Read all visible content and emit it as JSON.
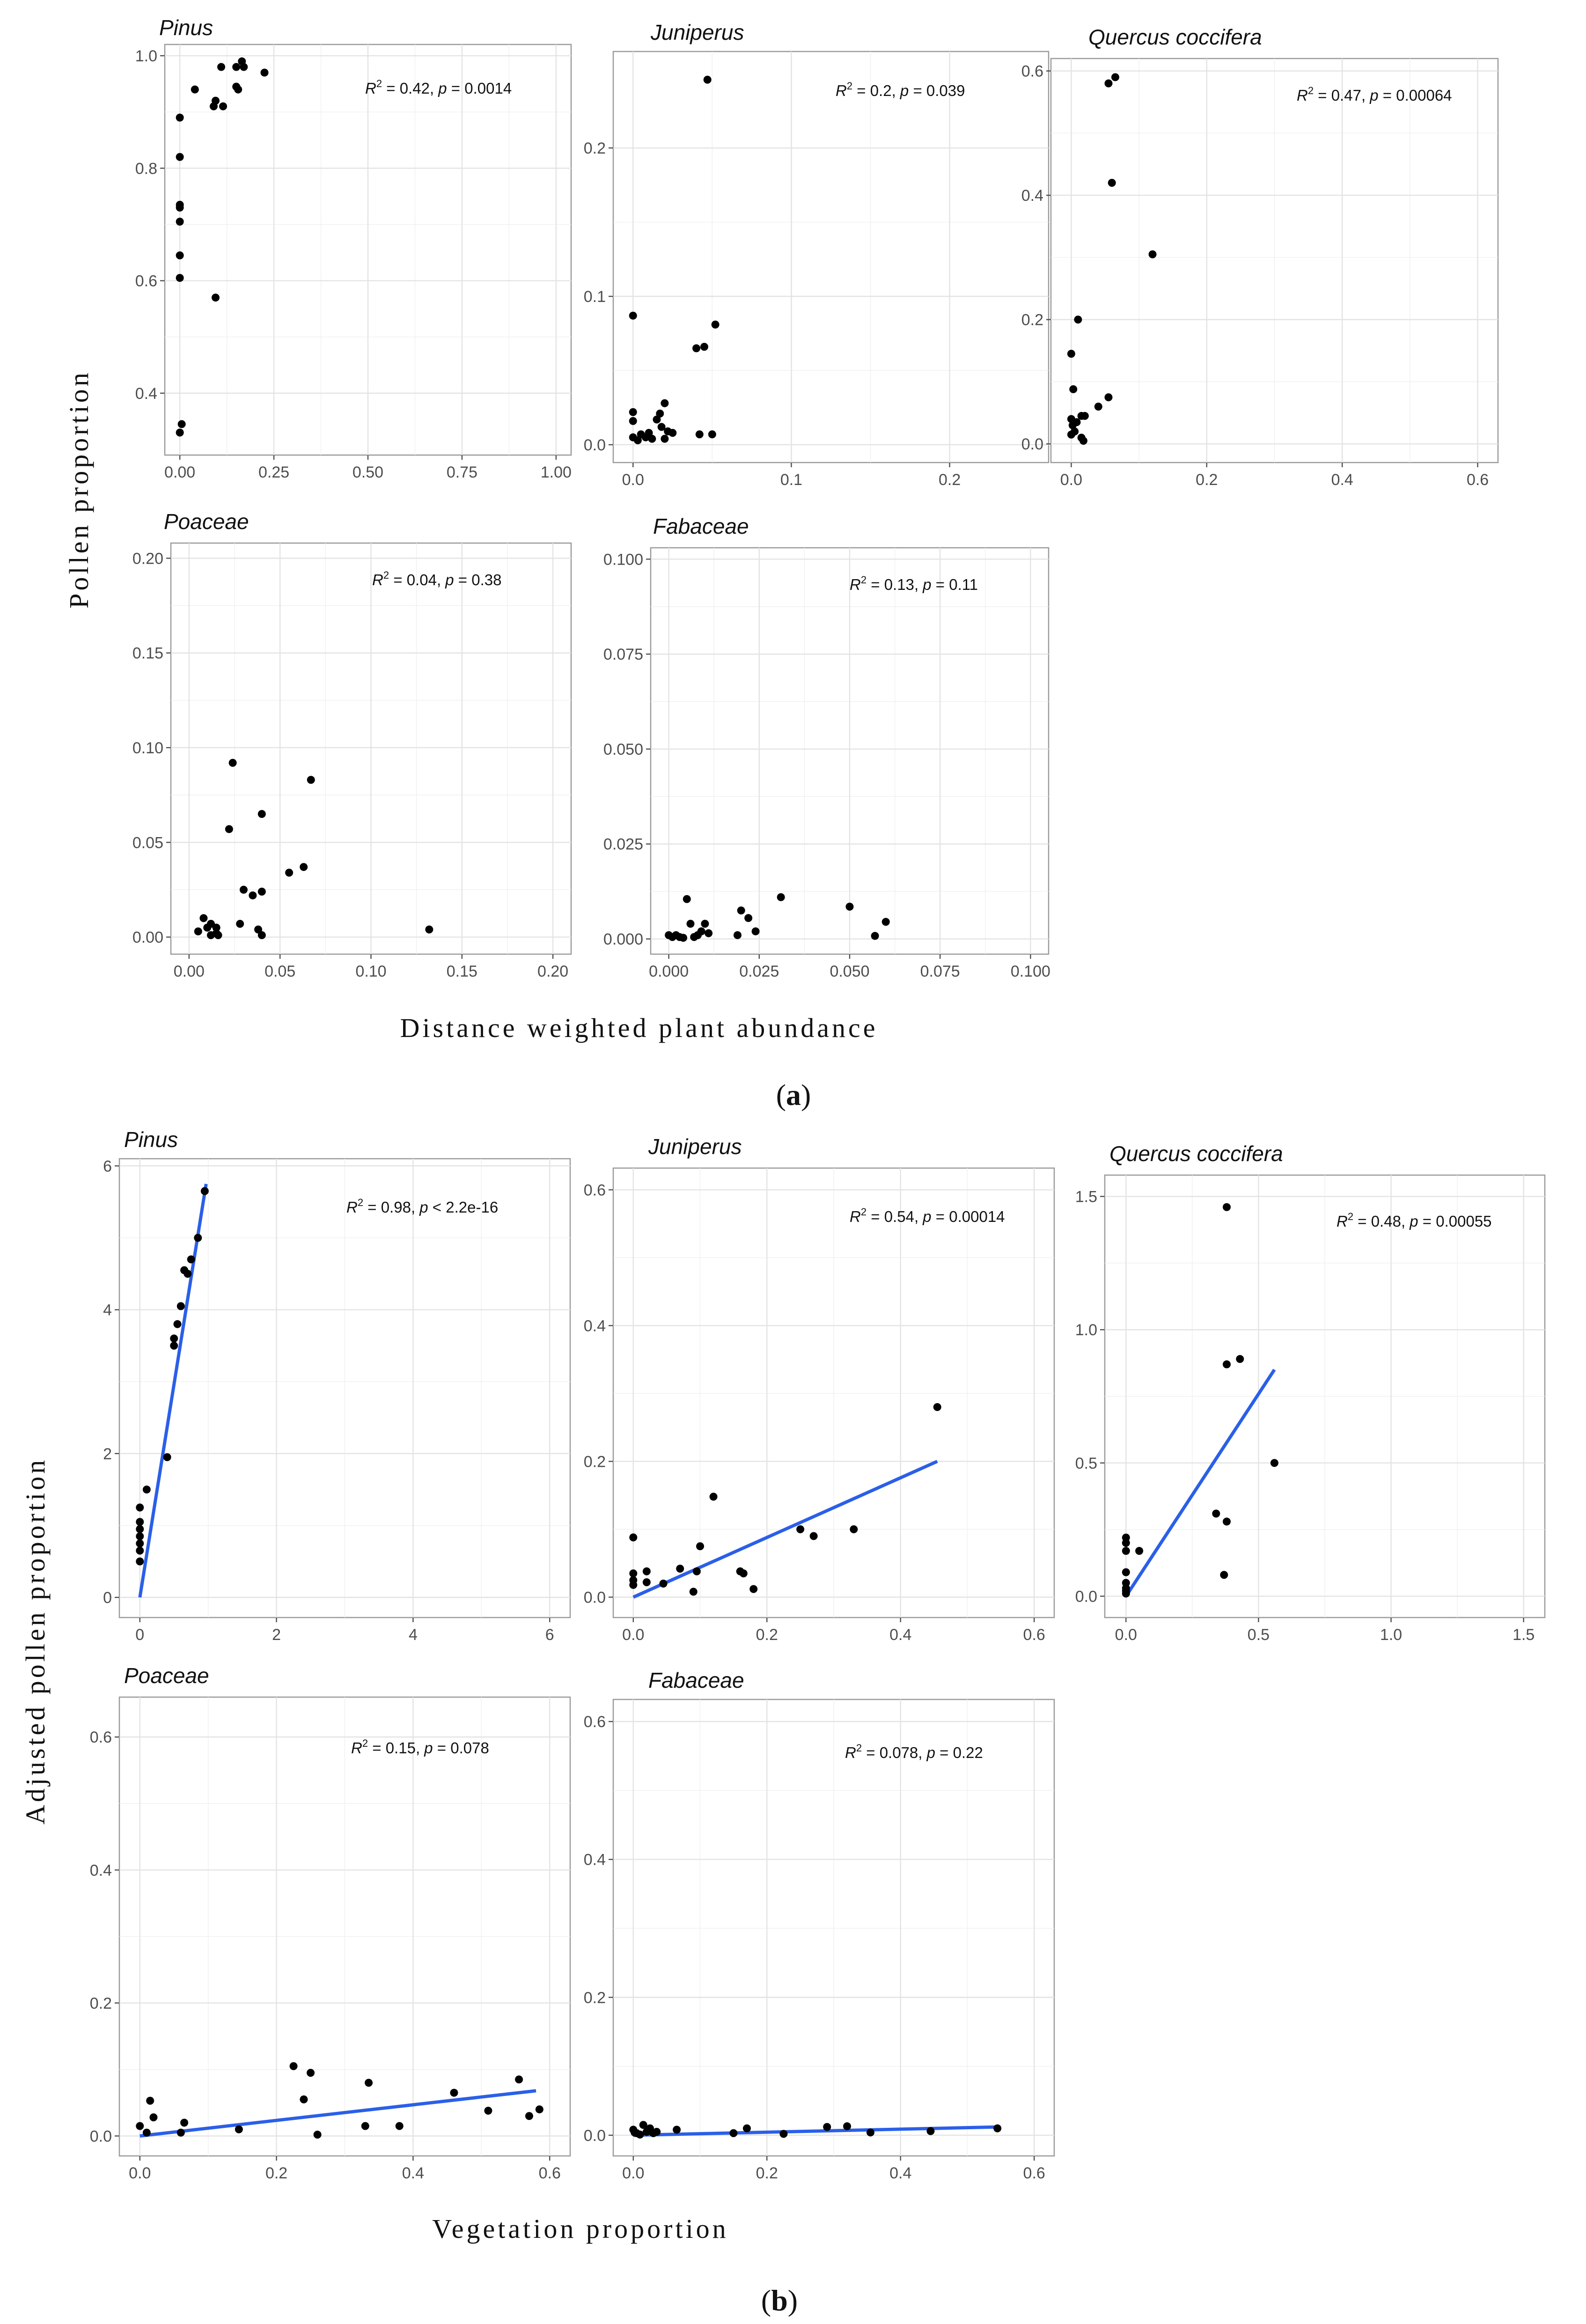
{
  "figure": {
    "part_a": {
      "caption_label": "a",
      "y_axis_label": "Pollen proportion",
      "x_axis_label": "Distance weighted plant abundance"
    },
    "part_b": {
      "caption_label": "b",
      "y_axis_label": "Adjusted pollen proportion",
      "x_axis_label": "Vegetation proportion"
    }
  },
  "chart_data": [
    {
      "id": "a-pinus",
      "part": "a",
      "type": "scatter",
      "title": "Pinus",
      "xlim": [
        -0.04,
        1.04
      ],
      "ylim": [
        0.29,
        1.02
      ],
      "xticks": [
        0,
        0.25,
        0.5,
        0.75,
        1.0
      ],
      "xtick_labels": [
        "0.00",
        "0.25",
        "0.50",
        "0.75",
        "1.00"
      ],
      "yticks": [
        0.4,
        0.6,
        0.8,
        1.0
      ],
      "ytick_labels": [
        "0.4",
        "0.6",
        "0.8",
        "1.0"
      ],
      "stat": {
        "r2": "0.42",
        "p_op": "=",
        "p": "0.0014"
      },
      "points": [
        [
          0.0,
          0.89
        ],
        [
          0.0,
          0.82
        ],
        [
          0.0,
          0.735
        ],
        [
          0.0,
          0.73
        ],
        [
          0.0,
          0.705
        ],
        [
          0.0,
          0.645
        ],
        [
          0.0,
          0.605
        ],
        [
          0.005,
          0.345
        ],
        [
          0.0,
          0.33
        ],
        [
          0.04,
          0.94
        ],
        [
          0.09,
          0.91
        ],
        [
          0.095,
          0.92
        ],
        [
          0.11,
          0.98
        ],
        [
          0.115,
          0.91
        ],
        [
          0.15,
          0.98
        ],
        [
          0.15,
          0.945
        ],
        [
          0.155,
          0.94
        ],
        [
          0.165,
          0.99
        ],
        [
          0.17,
          0.98
        ],
        [
          0.225,
          0.97
        ],
        [
          0.095,
          0.57
        ]
      ]
    },
    {
      "id": "a-juniperus",
      "part": "a",
      "type": "scatter",
      "title": "Juniperus",
      "xlim": [
        -0.0125,
        0.2625
      ],
      "ylim": [
        -0.012,
        0.265
      ],
      "xticks": [
        0,
        0.1,
        0.2
      ],
      "xtick_labels": [
        "0.0",
        "0.1",
        "0.2"
      ],
      "yticks": [
        0,
        0.1,
        0.2
      ],
      "ytick_labels": [
        "0.0",
        "0.1",
        "0.2"
      ],
      "stat": {
        "r2": "0.2",
        "p_op": "=",
        "p": "0.039"
      },
      "points": [
        [
          0.0,
          0.087
        ],
        [
          0.0,
          0.022
        ],
        [
          0.0,
          0.016
        ],
        [
          0.0,
          0.005
        ],
        [
          0.003,
          0.003
        ],
        [
          0.005,
          0.007
        ],
        [
          0.008,
          0.005
        ],
        [
          0.01,
          0.008
        ],
        [
          0.012,
          0.004
        ],
        [
          0.015,
          0.017
        ],
        [
          0.017,
          0.021
        ],
        [
          0.018,
          0.012
        ],
        [
          0.02,
          0.028
        ],
        [
          0.02,
          0.004
        ],
        [
          0.022,
          0.009
        ],
        [
          0.025,
          0.008
        ],
        [
          0.04,
          0.065
        ],
        [
          0.045,
          0.066
        ],
        [
          0.042,
          0.007
        ],
        [
          0.05,
          0.007
        ],
        [
          0.052,
          0.081
        ],
        [
          0.047,
          0.246
        ]
      ]
    },
    {
      "id": "a-quercus",
      "part": "a",
      "type": "scatter",
      "title": "Quercus coccifera",
      "xlim": [
        -0.03,
        0.63
      ],
      "ylim": [
        -0.03,
        0.62
      ],
      "xticks": [
        0,
        0.2,
        0.4,
        0.6
      ],
      "xtick_labels": [
        "0.0",
        "0.2",
        "0.4",
        "0.6"
      ],
      "yticks": [
        0,
        0.2,
        0.4,
        0.6
      ],
      "ytick_labels": [
        "0.0",
        "0.2",
        "0.4",
        "0.6"
      ],
      "stat": {
        "r2": "0.47",
        "p_op": "=",
        "p": "0.00064"
      },
      "points": [
        [
          0.0,
          0.145
        ],
        [
          0.003,
          0.088
        ],
        [
          0.0,
          0.04
        ],
        [
          0.002,
          0.03
        ],
        [
          0.0,
          0.015
        ],
        [
          0.005,
          0.02
        ],
        [
          0.008,
          0.035
        ],
        [
          0.01,
          0.2
        ],
        [
          0.015,
          0.045
        ],
        [
          0.015,
          0.01
        ],
        [
          0.018,
          0.005
        ],
        [
          0.02,
          0.045
        ],
        [
          0.04,
          0.06
        ],
        [
          0.055,
          0.075
        ],
        [
          0.055,
          0.58
        ],
        [
          0.065,
          0.59
        ],
        [
          0.06,
          0.42
        ],
        [
          0.12,
          0.305
        ]
      ]
    },
    {
      "id": "a-poaceae",
      "part": "a",
      "type": "scatter",
      "title": "Poaceae",
      "xlim": [
        -0.01,
        0.21
      ],
      "ylim": [
        -0.009,
        0.208
      ],
      "xticks": [
        0,
        0.05,
        0.1,
        0.15,
        0.2
      ],
      "xtick_labels": [
        "0.00",
        "0.05",
        "0.10",
        "0.15",
        "0.20"
      ],
      "yticks": [
        0,
        0.05,
        0.1,
        0.15,
        0.2
      ],
      "ytick_labels": [
        "0.00",
        "0.05",
        "0.10",
        "0.15",
        "0.20"
      ],
      "stat": {
        "r2": "0.04",
        "p_op": "=",
        "p": "0.38"
      },
      "points": [
        [
          0.005,
          0.003
        ],
        [
          0.008,
          0.01
        ],
        [
          0.01,
          0.005
        ],
        [
          0.012,
          0.001
        ],
        [
          0.012,
          0.007
        ],
        [
          0.015,
          0.002
        ],
        [
          0.015,
          0.005
        ],
        [
          0.016,
          0.001
        ],
        [
          0.022,
          0.057
        ],
        [
          0.024,
          0.092
        ],
        [
          0.028,
          0.007
        ],
        [
          0.03,
          0.025
        ],
        [
          0.035,
          0.022
        ],
        [
          0.038,
          0.004
        ],
        [
          0.04,
          0.024
        ],
        [
          0.04,
          0.065
        ],
        [
          0.04,
          0.001
        ],
        [
          0.055,
          0.034
        ],
        [
          0.063,
          0.037
        ],
        [
          0.067,
          0.083
        ],
        [
          0.132,
          0.004
        ]
      ]
    },
    {
      "id": "a-fabaceae",
      "part": "a",
      "type": "scatter",
      "title": "Fabaceae",
      "xlim": [
        -0.005,
        0.105
      ],
      "ylim": [
        -0.004,
        0.103
      ],
      "xticks": [
        0,
        0.025,
        0.05,
        0.075,
        0.1
      ],
      "xtick_labels": [
        "0.000",
        "0.025",
        "0.050",
        "0.075",
        "0.100"
      ],
      "yticks": [
        0,
        0.025,
        0.05,
        0.075,
        0.1
      ],
      "ytick_labels": [
        "0.000",
        "0.025",
        "0.050",
        "0.075",
        "0.100"
      ],
      "stat": {
        "r2": "0.13",
        "p_op": "=",
        "p": "0.11"
      },
      "points": [
        [
          0.0,
          0.001
        ],
        [
          0.001,
          0.0005
        ],
        [
          0.002,
          0.001
        ],
        [
          0.003,
          0.0005
        ],
        [
          0.004,
          0.0003
        ],
        [
          0.005,
          0.0105
        ],
        [
          0.006,
          0.004
        ],
        [
          0.007,
          0.0005
        ],
        [
          0.008,
          0.001
        ],
        [
          0.009,
          0.002
        ],
        [
          0.01,
          0.004
        ],
        [
          0.011,
          0.0015
        ],
        [
          0.019,
          0.001
        ],
        [
          0.02,
          0.0075
        ],
        [
          0.022,
          0.0055
        ],
        [
          0.024,
          0.002
        ],
        [
          0.031,
          0.011
        ],
        [
          0.05,
          0.0085
        ],
        [
          0.057,
          0.0008
        ],
        [
          0.06,
          0.0045
        ]
      ]
    },
    {
      "id": "b-pinus",
      "part": "b",
      "type": "scatter",
      "title": "Pinus",
      "xlim": [
        -0.3,
        6.3
      ],
      "ylim": [
        -0.28,
        6.1
      ],
      "xticks": [
        0,
        2,
        4,
        6
      ],
      "xtick_labels": [
        "0",
        "2",
        "4",
        "6"
      ],
      "yticks": [
        0,
        2,
        4,
        6
      ],
      "ytick_labels": [
        "0",
        "2",
        "4",
        "6"
      ],
      "stat": {
        "r2": "0.98",
        "p_op": "<",
        "p": "2.2e-16"
      },
      "fit": [
        [
          0.0,
          0.0
        ],
        [
          0.97,
          5.75
        ]
      ],
      "points": [
        [
          0.0,
          0.5
        ],
        [
          0.0,
          0.65
        ],
        [
          0.0,
          0.75
        ],
        [
          0.0,
          0.85
        ],
        [
          0.0,
          0.95
        ],
        [
          0.0,
          1.05
        ],
        [
          0.0,
          1.25
        ],
        [
          0.1,
          1.5
        ],
        [
          0.4,
          1.95
        ],
        [
          0.5,
          3.6
        ],
        [
          0.5,
          3.5
        ],
        [
          0.55,
          3.8
        ],
        [
          0.6,
          4.05
        ],
        [
          0.65,
          4.55
        ],
        [
          0.7,
          4.5
        ],
        [
          0.75,
          4.7
        ],
        [
          0.85,
          5.0
        ],
        [
          0.95,
          5.65
        ]
      ]
    },
    {
      "id": "b-juniperus",
      "part": "b",
      "type": "scatter",
      "title": "Juniperus",
      "xlim": [
        -0.03,
        0.63
      ],
      "ylim": [
        -0.03,
        0.632
      ],
      "xticks": [
        0,
        0.2,
        0.4,
        0.6
      ],
      "xtick_labels": [
        "0.0",
        "0.2",
        "0.4",
        "0.6"
      ],
      "yticks": [
        0,
        0.2,
        0.4,
        0.6
      ],
      "ytick_labels": [
        "0.0",
        "0.2",
        "0.4",
        "0.6"
      ],
      "stat": {
        "r2": "0.54",
        "p_op": "=",
        "p": "0.00014"
      },
      "fit": [
        [
          0.0,
          0.0
        ],
        [
          0.455,
          0.2
        ]
      ],
      "points": [
        [
          0.0,
          0.088
        ],
        [
          0.0,
          0.035
        ],
        [
          0.0,
          0.025
        ],
        [
          0.0,
          0.018
        ],
        [
          0.02,
          0.038
        ],
        [
          0.02,
          0.022
        ],
        [
          0.045,
          0.02
        ],
        [
          0.07,
          0.042
        ],
        [
          0.09,
          0.008
        ],
        [
          0.095,
          0.038
        ],
        [
          0.1,
          0.075
        ],
        [
          0.12,
          0.148
        ],
        [
          0.16,
          0.038
        ],
        [
          0.165,
          0.035
        ],
        [
          0.18,
          0.012
        ],
        [
          0.25,
          0.1
        ],
        [
          0.27,
          0.09
        ],
        [
          0.33,
          0.1
        ],
        [
          0.455,
          0.28
        ]
      ]
    },
    {
      "id": "b-quercus",
      "part": "b",
      "type": "scatter",
      "title": "Quercus coccifera",
      "xlim": [
        -0.08,
        1.58
      ],
      "ylim": [
        -0.08,
        1.58
      ],
      "xticks": [
        0,
        0.5,
        1.0,
        1.5
      ],
      "xtick_labels": [
        "0.0",
        "0.5",
        "1.0",
        "1.5"
      ],
      "yticks": [
        0,
        0.5,
        1.0,
        1.5
      ],
      "ytick_labels": [
        "0.0",
        "0.5",
        "1.0",
        "1.5"
      ],
      "stat": {
        "r2": "0.48",
        "p_op": "=",
        "p": "0.00055"
      },
      "fit": [
        [
          0.0,
          0.0
        ],
        [
          0.56,
          0.85
        ]
      ],
      "points": [
        [
          0.0,
          0.22
        ],
        [
          0.0,
          0.2
        ],
        [
          0.0,
          0.17
        ],
        [
          0.0,
          0.09
        ],
        [
          0.0,
          0.05
        ],
        [
          0.0,
          0.03
        ],
        [
          0.0,
          0.02
        ],
        [
          0.0,
          0.01
        ],
        [
          0.05,
          0.17
        ],
        [
          0.34,
          0.31
        ],
        [
          0.37,
          0.08
        ],
        [
          0.38,
          0.28
        ],
        [
          0.38,
          1.46
        ],
        [
          0.38,
          0.87
        ],
        [
          0.43,
          0.89
        ],
        [
          0.56,
          0.5
        ]
      ]
    },
    {
      "id": "b-poaceae",
      "part": "b",
      "type": "scatter",
      "title": "Poaceae",
      "xlim": [
        -0.03,
        0.63
      ],
      "ylim": [
        -0.03,
        0.66
      ],
      "xticks": [
        0,
        0.2,
        0.4,
        0.6
      ],
      "xtick_labels": [
        "0.0",
        "0.2",
        "0.4",
        "0.6"
      ],
      "yticks": [
        0,
        0.2,
        0.4,
        0.6
      ],
      "ytick_labels": [
        "0.0",
        "0.2",
        "0.4",
        "0.6"
      ],
      "stat": {
        "r2": "0.15",
        "p_op": "=",
        "p": "0.078"
      },
      "fit": [
        [
          0.0,
          0.0
        ],
        [
          0.58,
          0.068
        ]
      ],
      "points": [
        [
          0.0,
          0.015
        ],
        [
          0.01,
          0.005
        ],
        [
          0.015,
          0.053
        ],
        [
          0.02,
          0.028
        ],
        [
          0.06,
          0.005
        ],
        [
          0.065,
          0.02
        ],
        [
          0.145,
          0.01
        ],
        [
          0.225,
          0.105
        ],
        [
          0.24,
          0.055
        ],
        [
          0.25,
          0.095
        ],
        [
          0.26,
          0.002
        ],
        [
          0.33,
          0.015
        ],
        [
          0.335,
          0.08
        ],
        [
          0.38,
          0.015
        ],
        [
          0.46,
          0.065
        ],
        [
          0.51,
          0.038
        ],
        [
          0.555,
          0.085
        ],
        [
          0.57,
          0.03
        ],
        [
          0.585,
          0.04
        ]
      ]
    },
    {
      "id": "b-fabaceae",
      "part": "b",
      "type": "scatter",
      "title": "Fabaceae",
      "xlim": [
        -0.03,
        0.63
      ],
      "ylim": [
        -0.03,
        0.632
      ],
      "xticks": [
        0,
        0.2,
        0.4,
        0.6
      ],
      "xtick_labels": [
        "0.0",
        "0.2",
        "0.4",
        "0.6"
      ],
      "yticks": [
        0,
        0.2,
        0.4,
        0.6
      ],
      "ytick_labels": [
        "0.0",
        "0.2",
        "0.4",
        "0.6"
      ],
      "stat": {
        "r2": "0.078",
        "p_op": "=",
        "p": "0.22"
      },
      "fit": [
        [
          0.0,
          0.0
        ],
        [
          0.545,
          0.012
        ]
      ],
      "points": [
        [
          0.0,
          0.008
        ],
        [
          0.002,
          0.004
        ],
        [
          0.005,
          0.003
        ],
        [
          0.01,
          0.001
        ],
        [
          0.015,
          0.015
        ],
        [
          0.02,
          0.005
        ],
        [
          0.025,
          0.01
        ],
        [
          0.03,
          0.003
        ],
        [
          0.035,
          0.005
        ],
        [
          0.065,
          0.008
        ],
        [
          0.15,
          0.003
        ],
        [
          0.17,
          0.01
        ],
        [
          0.225,
          0.002
        ],
        [
          0.29,
          0.012
        ],
        [
          0.32,
          0.013
        ],
        [
          0.355,
          0.004
        ],
        [
          0.445,
          0.006
        ],
        [
          0.545,
          0.01
        ]
      ]
    }
  ]
}
